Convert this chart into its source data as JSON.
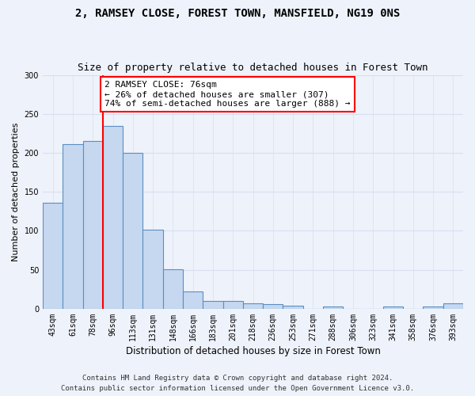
{
  "title": "2, RAMSEY CLOSE, FOREST TOWN, MANSFIELD, NG19 0NS",
  "subtitle": "Size of property relative to detached houses in Forest Town",
  "xlabel": "Distribution of detached houses by size in Forest Town",
  "ylabel": "Number of detached properties",
  "footnote": "Contains HM Land Registry data © Crown copyright and database right 2024.\nContains public sector information licensed under the Open Government Licence v3.0.",
  "bar_labels": [
    "43sqm",
    "61sqm",
    "78sqm",
    "96sqm",
    "113sqm",
    "131sqm",
    "148sqm",
    "166sqm",
    "183sqm",
    "201sqm",
    "218sqm",
    "236sqm",
    "253sqm",
    "271sqm",
    "288sqm",
    "306sqm",
    "323sqm",
    "341sqm",
    "358sqm",
    "376sqm",
    "393sqm"
  ],
  "bar_values": [
    136,
    211,
    215,
    235,
    200,
    101,
    51,
    22,
    10,
    10,
    7,
    6,
    4,
    0,
    3,
    0,
    0,
    3,
    0,
    3,
    7
  ],
  "bar_color": "#c5d8f0",
  "bar_edge_color": "#5a8fc2",
  "vline_x": 2.5,
  "annotation_text": "2 RAMSEY CLOSE: 76sqm\n← 26% of detached houses are smaller (307)\n74% of semi-detached houses are larger (888) →",
  "annotation_box_color": "white",
  "annotation_box_edge_color": "red",
  "vline_color": "red",
  "ylim": [
    0,
    300
  ],
  "yticks": [
    0,
    50,
    100,
    150,
    200,
    250,
    300
  ],
  "background_color": "#eef2fa",
  "grid_color": "#d8dff0",
  "title_fontsize": 10,
  "subtitle_fontsize": 9,
  "xlabel_fontsize": 8.5,
  "ylabel_fontsize": 8,
  "tick_fontsize": 7,
  "annotation_fontsize": 8,
  "footnote_fontsize": 6.5
}
